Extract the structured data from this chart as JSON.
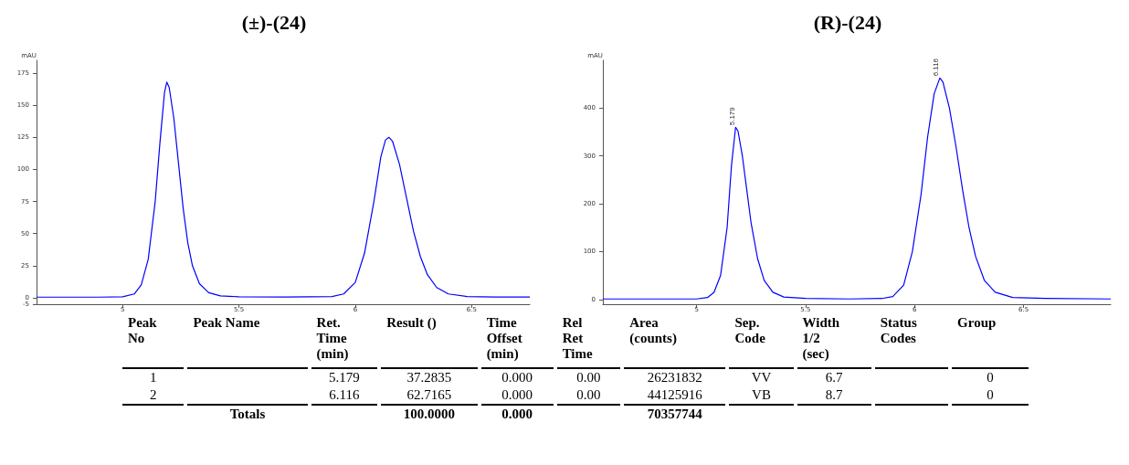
{
  "chart_data": [
    {
      "type": "line",
      "title": "(±)-(24)",
      "ylabel": "mAU",
      "xlim": [
        4.63,
        6.75
      ],
      "xticks": [
        5.0,
        5.5,
        6.0,
        6.5
      ],
      "ylim": [
        -5,
        185
      ],
      "yticks": [
        -5,
        0,
        25,
        50,
        75,
        100,
        125,
        150,
        175
      ],
      "grid": false,
      "marker": "none",
      "line_style": "solid",
      "x": [
        4.63,
        4.9,
        5.0,
        5.05,
        5.08,
        5.11,
        5.14,
        5.16,
        5.18,
        5.19,
        5.2,
        5.22,
        5.24,
        5.26,
        5.28,
        5.3,
        5.33,
        5.37,
        5.42,
        5.5,
        5.7,
        5.9,
        5.95,
        6.0,
        6.04,
        6.08,
        6.11,
        6.13,
        6.145,
        6.16,
        6.19,
        6.22,
        6.25,
        6.28,
        6.31,
        6.35,
        6.4,
        6.48,
        6.6,
        6.75
      ],
      "series": [
        {
          "color": "#0000ff",
          "values": [
            0.5,
            0.5,
            0.8,
            3,
            10,
            30,
            75,
            120,
            160,
            168,
            164,
            140,
            105,
            70,
            43,
            25,
            11,
            4,
            1.5,
            0.8,
            0.6,
            1,
            3,
            12,
            35,
            75,
            110,
            123,
            125,
            122,
            104,
            78,
            52,
            32,
            18,
            8,
            3,
            1,
            0.6,
            0.6
          ]
        }
      ]
    },
    {
      "type": "line",
      "title": "(R)-(24)",
      "ylabel": "mAU",
      "xlim": [
        4.57,
        6.9
      ],
      "xticks": [
        5.0,
        5.5,
        6.0,
        6.5
      ],
      "ylim": [
        -10,
        500
      ],
      "yticks": [
        0,
        100,
        200,
        300,
        400
      ],
      "grid": false,
      "marker": "none",
      "line_style": "solid",
      "x": [
        4.57,
        5.0,
        5.05,
        5.08,
        5.11,
        5.14,
        5.16,
        5.179,
        5.19,
        5.21,
        5.23,
        5.25,
        5.28,
        5.31,
        5.35,
        5.4,
        5.5,
        5.7,
        5.85,
        5.9,
        5.95,
        5.99,
        6.03,
        6.06,
        6.09,
        6.116,
        6.13,
        6.16,
        6.19,
        6.22,
        6.25,
        6.28,
        6.32,
        6.37,
        6.45,
        6.6,
        6.9
      ],
      "series": [
        {
          "color": "#0000ff",
          "values": [
            1,
            1,
            4,
            15,
            50,
            150,
            280,
            360,
            352,
            300,
            230,
            160,
            85,
            40,
            15,
            5,
            2,
            1,
            2,
            6,
            30,
            100,
            220,
            340,
            430,
            463,
            455,
            400,
            320,
            230,
            150,
            90,
            40,
            15,
            4,
            2,
            1
          ]
        }
      ],
      "annotations": [
        {
          "text": "5.179",
          "x": 5.179,
          "y": 360
        },
        {
          "text": "6.116",
          "x": 6.116,
          "y": 463
        }
      ]
    },
    {
      "type": "other",
      "categories": [
        "Peak\nNo",
        "Peak Name",
        "Ret.\nTime\n(min)",
        "Result ()",
        "Time\nOffset\n(min)",
        "Rel\nRet\nTime",
        "Area\n(counts)",
        "Sep.\nCode",
        "Width\n1/2\n(sec)",
        "Status\nCodes",
        "Group"
      ],
      "cell_labels": [
        [
          "1",
          null,
          "5.179",
          "37.2835",
          "0.000",
          "0.00",
          "26231832",
          "VV",
          "6.7",
          null,
          "0"
        ],
        [
          "2",
          null,
          "6.116",
          "62.7165",
          "0.000",
          "0.00",
          "44125916",
          "VB",
          "8.7",
          null,
          "0"
        ],
        [
          null,
          "Totals",
          null,
          "100.0000",
          "0.000",
          null,
          "70357744",
          null,
          null,
          null,
          null
        ]
      ]
    }
  ]
}
